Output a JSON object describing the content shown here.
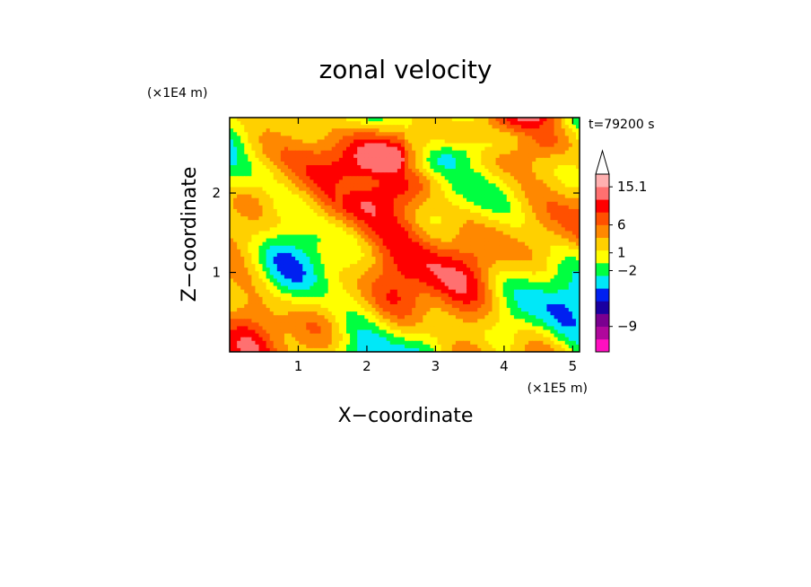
{
  "chart_data": {
    "type": "heatmap",
    "title": "zonal velocity",
    "xlabel": "X−coordinate",
    "ylabel": "Z−coordinate",
    "x_unit": "(×1E5 m)",
    "y_unit": "(×1E4 m)",
    "time_label": "t=79200 s",
    "xlim": [
      0,
      5.1
    ],
    "ylim": [
      0,
      2.95
    ],
    "x_ticks": [
      {
        "value": 1,
        "label": "1"
      },
      {
        "value": 2,
        "label": "2"
      },
      {
        "value": 3,
        "label": "3"
      },
      {
        "value": 4,
        "label": "4"
      },
      {
        "value": 5,
        "label": "5"
      }
    ],
    "y_ticks": [
      {
        "value": 1,
        "label": "1"
      },
      {
        "value": 2,
        "label": "2"
      }
    ],
    "colorbar": {
      "bins": [
        {
          "color": "#ff10c0"
        },
        {
          "color": "#b0089c"
        },
        {
          "color": "#7a0090"
        },
        {
          "color": "#1a00a0"
        },
        {
          "color": "#0020f0"
        },
        {
          "color": "#00e8f8"
        },
        {
          "color": "#00ff40"
        },
        {
          "color": "#ffff00"
        },
        {
          "color": "#ffd000"
        },
        {
          "color": "#ff8800"
        },
        {
          "color": "#ff5000"
        },
        {
          "color": "#ff0000"
        },
        {
          "color": "#ff7070"
        },
        {
          "color": "#ffb0b0"
        }
      ],
      "labels": [
        {
          "text": "15.1",
          "level": 13
        },
        {
          "text": "6",
          "level": 10
        },
        {
          "text": "1",
          "level": 7.8
        },
        {
          "text": "−2",
          "level": 6.4
        },
        {
          "text": "−9",
          "level": 2
        }
      ]
    }
  }
}
